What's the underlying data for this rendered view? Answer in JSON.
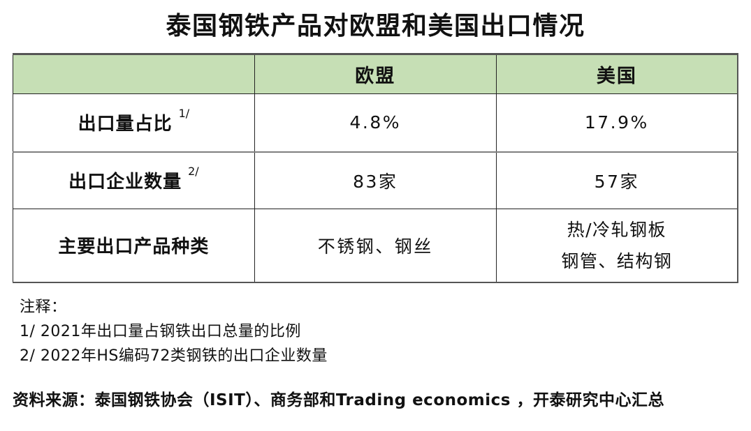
{
  "chart_data": {
    "type": "table",
    "title": "泰国钢铁产品对欧盟和美国出口情况",
    "columns": [
      "",
      "欧盟",
      "美国"
    ],
    "rows": [
      {
        "label": "出口量占比",
        "sup": "1/",
        "values": [
          "4.8%",
          "17.9%"
        ]
      },
      {
        "label": "出口企业数量",
        "sup": "2/",
        "values": [
          "83家",
          "57家"
        ]
      },
      {
        "label": "主要出口产品种类",
        "sup": "",
        "values": [
          "不锈钢、钢丝",
          "热/冷轧钢板\n钢管、结构钢"
        ]
      }
    ],
    "header_bg": "#c6dfb5",
    "notes": [
      "注释：",
      "1/ 2021年出口量占钢铁出口总量的比例",
      "2/ 2022年HS编码72类钢铁的出口企业数量"
    ],
    "source": "资料来源：泰国钢铁协会（ISIT）、商务部和Trading economics ，开泰研究中心汇总"
  }
}
